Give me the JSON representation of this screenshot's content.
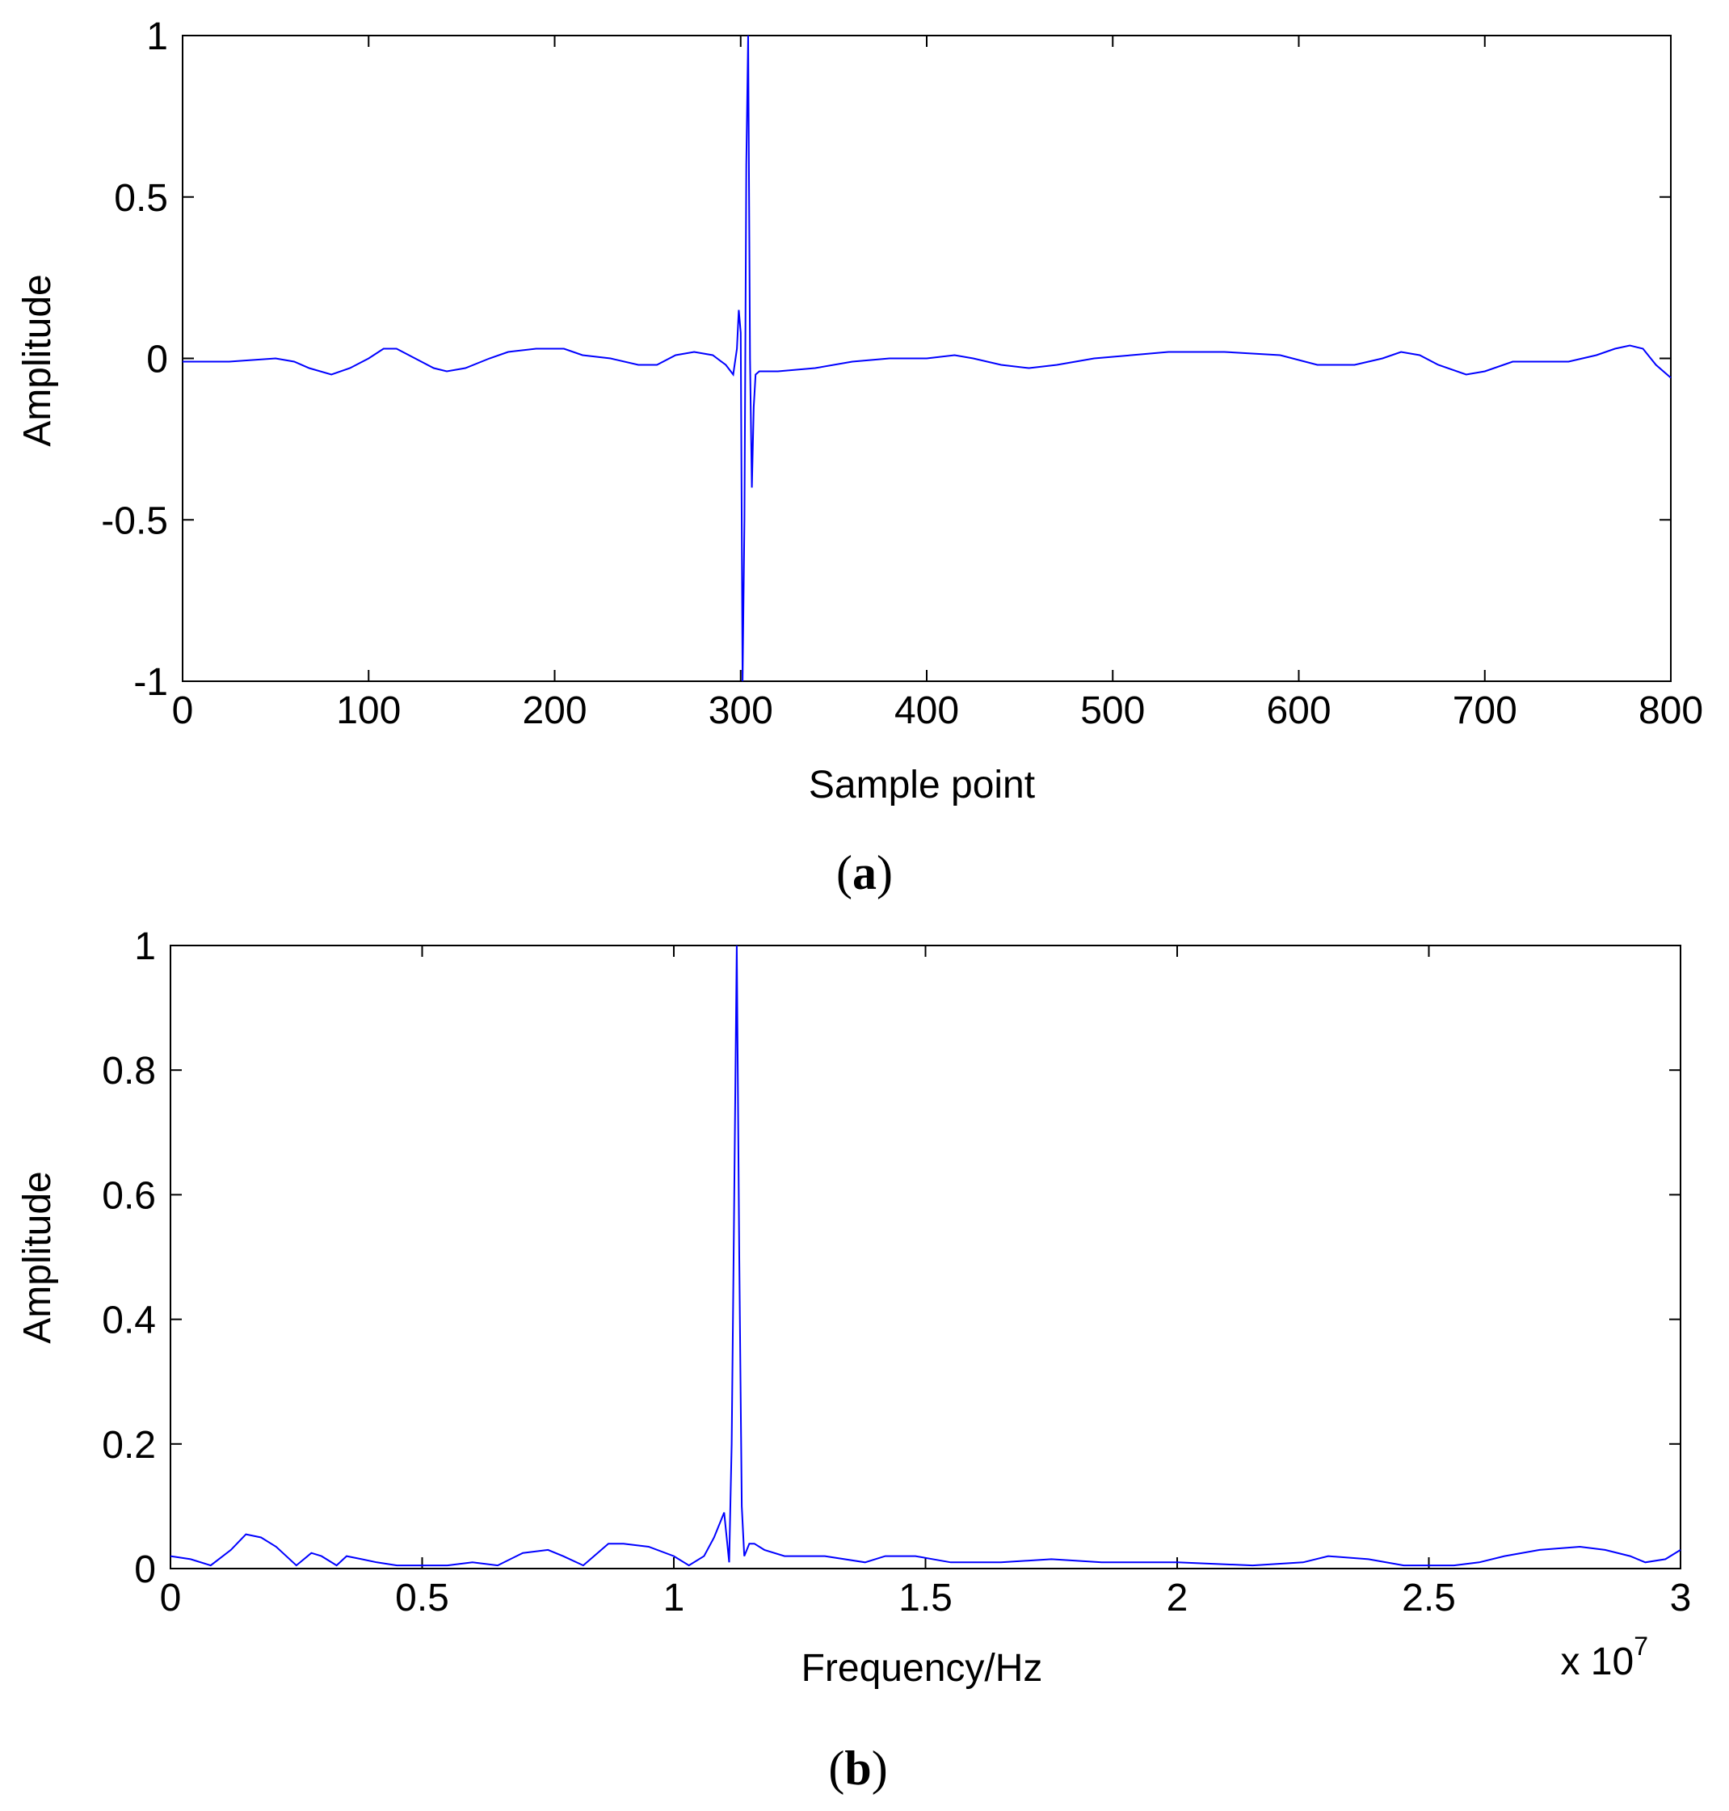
{
  "chart_data": [
    {
      "type": "line",
      "panel_label": "a",
      "xlabel": "Sample point",
      "ylabel": "Amplitude",
      "xlim": [
        0,
        800
      ],
      "ylim": [
        -1,
        1
      ],
      "xticks": [
        0,
        100,
        200,
        300,
        400,
        500,
        600,
        700,
        800
      ],
      "yticks": [
        -1,
        -0.5,
        0,
        0.5,
        1
      ],
      "xtick_labels": [
        "0",
        "100",
        "200",
        "300",
        "400",
        "500",
        "600",
        "700",
        "800"
      ],
      "ytick_labels": [
        "-1",
        "-0.5",
        "0",
        "0.5",
        "1"
      ],
      "grid": false,
      "line_color": "#0000ff",
      "series": [
        {
          "x": [
            0,
            25,
            50,
            60,
            68,
            80,
            90,
            100,
            108,
            115,
            125,
            135,
            142,
            152,
            165,
            175,
            190,
            205,
            215,
            230,
            245,
            255,
            265,
            275,
            285,
            292,
            296,
            298,
            299,
            300,
            301,
            302,
            303,
            304,
            305,
            306,
            307,
            308,
            310,
            312,
            320,
            340,
            360,
            380,
            400,
            415,
            425,
            440,
            455,
            470,
            490,
            510,
            530,
            560,
            590,
            610,
            630,
            645,
            655,
            665,
            675,
            690,
            700,
            715,
            730,
            745,
            760,
            770,
            778,
            785,
            792,
            800
          ],
          "y": [
            -0.01,
            -0.01,
            0.0,
            -0.01,
            -0.03,
            -0.05,
            -0.03,
            0.0,
            0.03,
            0.03,
            0.0,
            -0.03,
            -0.04,
            -0.03,
            0.0,
            0.02,
            0.03,
            0.03,
            0.01,
            0.0,
            -0.02,
            -0.02,
            0.01,
            0.02,
            0.01,
            -0.02,
            -0.05,
            0.03,
            0.15,
            0.08,
            -1.0,
            -0.5,
            0.6,
            1.0,
            0.0,
            -0.4,
            -0.15,
            -0.05,
            -0.04,
            -0.04,
            -0.04,
            -0.03,
            -0.01,
            0.0,
            0.0,
            0.01,
            0.0,
            -0.02,
            -0.03,
            -0.02,
            0.0,
            0.01,
            0.02,
            0.02,
            0.01,
            -0.02,
            -0.02,
            0.0,
            0.02,
            0.01,
            -0.02,
            -0.05,
            -0.04,
            -0.01,
            -0.01,
            -0.01,
            0.01,
            0.03,
            0.04,
            0.03,
            -0.02,
            -0.06
          ]
        }
      ]
    },
    {
      "type": "line",
      "panel_label": "b",
      "xlabel": "Frequency/Hz",
      "ylabel": "Amplitude",
      "xlim": [
        0,
        3
      ],
      "ylim": [
        0,
        1
      ],
      "x_multiplier": "x 10",
      "x_multiplier_exponent": "7",
      "xticks": [
        0,
        0.5,
        1,
        1.5,
        2,
        2.5,
        3
      ],
      "yticks": [
        0,
        0.2,
        0.4,
        0.6,
        0.8,
        1
      ],
      "xtick_labels": [
        "0",
        "0.5",
        "1",
        "1.5",
        "2",
        "2.5",
        "3"
      ],
      "ytick_labels": [
        "0",
        "0.2",
        "0.4",
        "0.6",
        "0.8",
        "1"
      ],
      "grid": false,
      "line_color": "#0000ff",
      "series": [
        {
          "x": [
            0,
            0.04,
            0.08,
            0.12,
            0.15,
            0.18,
            0.21,
            0.25,
            0.28,
            0.3,
            0.33,
            0.35,
            0.38,
            0.41,
            0.45,
            0.5,
            0.55,
            0.6,
            0.65,
            0.7,
            0.75,
            0.78,
            0.82,
            0.87,
            0.9,
            0.95,
            1.0,
            1.03,
            1.06,
            1.08,
            1.1,
            1.11,
            1.115,
            1.12,
            1.125,
            1.13,
            1.135,
            1.14,
            1.15,
            1.16,
            1.18,
            1.22,
            1.3,
            1.38,
            1.42,
            1.48,
            1.55,
            1.65,
            1.75,
            1.85,
            2.0,
            2.15,
            2.25,
            2.3,
            2.38,
            2.45,
            2.55,
            2.6,
            2.65,
            2.72,
            2.8,
            2.85,
            2.9,
            2.93,
            2.97,
            3.0
          ],
          "y": [
            0.02,
            0.015,
            0.005,
            0.03,
            0.055,
            0.05,
            0.035,
            0.005,
            0.025,
            0.02,
            0.005,
            0.02,
            0.015,
            0.01,
            0.005,
            0.005,
            0.005,
            0.01,
            0.005,
            0.025,
            0.03,
            0.02,
            0.005,
            0.04,
            0.04,
            0.035,
            0.02,
            0.005,
            0.02,
            0.05,
            0.09,
            0.01,
            0.2,
            0.6,
            1.0,
            0.5,
            0.1,
            0.02,
            0.04,
            0.04,
            0.03,
            0.02,
            0.02,
            0.01,
            0.02,
            0.02,
            0.01,
            0.01,
            0.015,
            0.01,
            0.01,
            0.005,
            0.01,
            0.02,
            0.015,
            0.005,
            0.005,
            0.01,
            0.02,
            0.03,
            0.035,
            0.03,
            0.02,
            0.01,
            0.015,
            0.03
          ]
        }
      ]
    }
  ]
}
